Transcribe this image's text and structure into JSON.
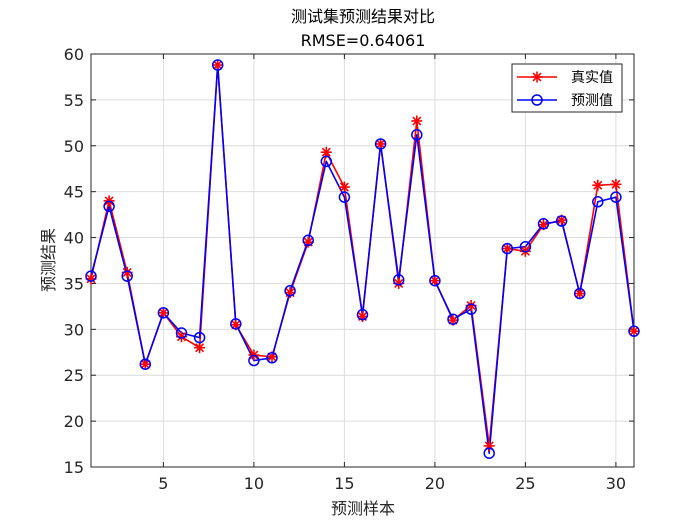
{
  "chart_data": {
    "type": "line",
    "title": "测试集预测结果对比",
    "subtitle": "RMSE=0.64061",
    "xlabel": "预测样本",
    "ylabel": "预测结果",
    "xlim": [
      1,
      31
    ],
    "ylim": [
      15,
      60
    ],
    "xticks": [
      5,
      10,
      15,
      20,
      25,
      30
    ],
    "yticks": [
      15,
      20,
      25,
      30,
      35,
      40,
      45,
      50,
      55,
      60
    ],
    "grid": true,
    "legend_position": "top-right",
    "x": [
      1,
      2,
      3,
      4,
      5,
      6,
      7,
      8,
      9,
      10,
      11,
      12,
      13,
      14,
      15,
      16,
      17,
      18,
      19,
      20,
      21,
      22,
      23,
      24,
      25,
      26,
      27,
      28,
      29,
      30,
      31
    ],
    "series": [
      {
        "name": "真实值",
        "color": "#ff0000",
        "marker": "asterisk",
        "values": [
          35.5,
          44.0,
          36.2,
          26.2,
          31.8,
          29.2,
          28.0,
          58.8,
          30.5,
          27.2,
          27.0,
          34.0,
          39.5,
          49.3,
          45.5,
          31.4,
          50.2,
          35.0,
          52.7,
          35.3,
          31.0,
          32.6,
          17.3,
          38.8,
          38.5,
          41.4,
          41.9,
          33.9,
          45.7,
          45.8,
          29.8
        ]
      },
      {
        "name": "预测值",
        "color": "#0000ff",
        "marker": "circle",
        "values": [
          35.8,
          43.4,
          35.8,
          26.2,
          31.8,
          29.6,
          29.1,
          58.8,
          30.6,
          26.6,
          26.9,
          34.2,
          39.7,
          48.3,
          44.4,
          31.6,
          50.2,
          35.4,
          51.2,
          35.3,
          31.1,
          32.2,
          16.5,
          38.8,
          39.0,
          41.5,
          41.8,
          33.9,
          43.9,
          44.4,
          29.8
        ]
      }
    ]
  }
}
